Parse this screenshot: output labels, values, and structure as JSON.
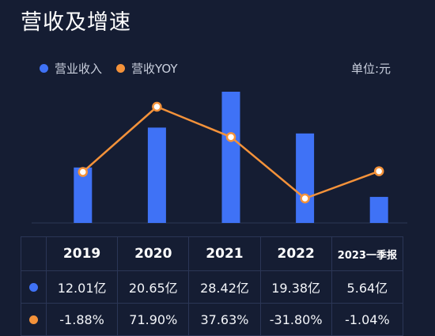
{
  "title": "营收及增速",
  "unit_label": "单位:元",
  "colors": {
    "bar": "#3f72f6",
    "line": "#f4923a",
    "background": "#151d33"
  },
  "chart_data": {
    "type": "bar",
    "categories": [
      "2019",
      "2020",
      "2021",
      "2022",
      "2023一季报"
    ],
    "series": [
      {
        "name": "营业收入",
        "type": "bar",
        "values": [
          12.01,
          20.65,
          28.42,
          19.38,
          5.64
        ],
        "display": [
          "12.01亿",
          "20.65亿",
          "28.42亿",
          "19.38亿",
          "5.64亿"
        ]
      },
      {
        "name": "营收YOY",
        "type": "line",
        "values": [
          -1.88,
          71.9,
          37.63,
          -31.8,
          -1.04
        ],
        "display": [
          "-1.88%",
          "71.90%",
          "37.63%",
          "-31.80%",
          "-1.04%"
        ]
      }
    ]
  }
}
